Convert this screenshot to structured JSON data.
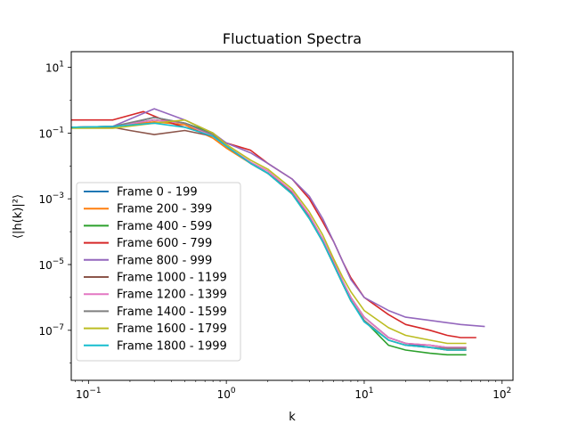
{
  "chart_data": {
    "type": "line",
    "title": "Fluctuation Spectra",
    "xlabel": "k",
    "ylabel": "⟨|h(k)|²⟩",
    "xscale": "log",
    "yscale": "log",
    "xlim": [
      0.075,
      120
    ],
    "ylim": [
      3e-09,
      30
    ],
    "x_ticks": [
      {
        "base": "10",
        "exp": "−1",
        "value": 0.1
      },
      {
        "base": "10",
        "exp": "0",
        "value": 1
      },
      {
        "base": "10",
        "exp": "1",
        "value": 10
      },
      {
        "base": "10",
        "exp": "2",
        "value": 100
      }
    ],
    "y_ticks": [
      {
        "base": "10",
        "exp": "−7",
        "value": 1e-07
      },
      {
        "base": "10",
        "exp": "−5",
        "value": 1e-05
      },
      {
        "base": "10",
        "exp": "−3",
        "value": 0.001
      },
      {
        "base": "10",
        "exp": "−1",
        "value": 0.1
      },
      {
        "base": "10",
        "exp": "1",
        "value": 10
      }
    ],
    "legend_position": "lower-left",
    "series": [
      {
        "name": "Frame 0 - 199",
        "color": "#1f77b4",
        "x": [
          0.075,
          0.15,
          0.3,
          0.5,
          0.8,
          1,
          1.5,
          2,
          3,
          4,
          5,
          6,
          7,
          8,
          10,
          15,
          20,
          30,
          40,
          55
        ],
        "y": [
          0.15,
          0.15,
          0.3,
          0.2,
          0.1,
          0.04,
          0.012,
          0.006,
          0.0016,
          0.0003,
          6e-05,
          1.2e-05,
          3e-06,
          1e-06,
          2.5e-07,
          6e-08,
          4e-08,
          3e-08,
          2.5e-08,
          2.5e-08
        ]
      },
      {
        "name": "Frame 200 - 399",
        "color": "#ff7f0e",
        "x": [
          0.075,
          0.15,
          0.3,
          0.5,
          0.8,
          1,
          1.5,
          2,
          3,
          4,
          5,
          6,
          7,
          8,
          10,
          15,
          20,
          30,
          40,
          55
        ],
        "y": [
          0.15,
          0.16,
          0.22,
          0.18,
          0.07,
          0.035,
          0.012,
          0.006,
          0.0015,
          0.00028,
          5e-05,
          1e-05,
          2.5e-06,
          8e-07,
          2e-07,
          5e-08,
          3.5e-08,
          3e-08,
          2.5e-08,
          2.5e-08
        ]
      },
      {
        "name": "Frame 400 - 599",
        "color": "#2ca02c",
        "x": [
          0.075,
          0.15,
          0.3,
          0.5,
          0.8,
          1,
          1.5,
          2,
          3,
          4,
          5,
          6,
          7,
          8,
          10,
          15,
          20,
          30,
          40,
          55
        ],
        "y": [
          0.15,
          0.16,
          0.25,
          0.2,
          0.1,
          0.04,
          0.012,
          0.006,
          0.0014,
          0.00025,
          5e-05,
          1e-05,
          2.5e-06,
          8e-07,
          2e-07,
          3.5e-08,
          2.5e-08,
          2e-08,
          1.8e-08,
          1.8e-08
        ]
      },
      {
        "name": "Frame 600 - 799",
        "color": "#d62728",
        "x": [
          0.075,
          0.15,
          0.25,
          0.4,
          0.6,
          0.8,
          1,
          1.5,
          2,
          3,
          4,
          5,
          6,
          7,
          8,
          10,
          15,
          20,
          30,
          40,
          50,
          65
        ],
        "y": [
          0.25,
          0.25,
          0.45,
          0.2,
          0.12,
          0.08,
          0.05,
          0.03,
          0.012,
          0.004,
          0.001,
          0.0002,
          5e-05,
          1.2e-05,
          4e-06,
          1e-06,
          3e-07,
          1.5e-07,
          1e-07,
          7e-08,
          6e-08,
          6e-08
        ]
      },
      {
        "name": "Frame 800 - 999",
        "color": "#9467bd",
        "x": [
          0.075,
          0.15,
          0.3,
          0.5,
          0.8,
          1,
          1.5,
          2,
          3,
          4,
          5,
          6,
          7,
          8,
          10,
          15,
          20,
          30,
          40,
          50,
          75
        ],
        "y": [
          0.15,
          0.16,
          0.55,
          0.25,
          0.1,
          0.05,
          0.025,
          0.012,
          0.004,
          0.0012,
          0.00025,
          5e-05,
          1.2e-05,
          3.5e-06,
          1e-06,
          4e-07,
          2.5e-07,
          2e-07,
          1.7e-07,
          1.5e-07,
          1.3e-07
        ]
      },
      {
        "name": "Frame 1000 - 1199",
        "color": "#8c564b",
        "x": [
          0.075,
          0.15,
          0.2,
          0.3,
          0.5,
          0.8,
          1,
          1.5,
          2,
          3,
          4,
          5,
          6,
          7,
          8,
          10,
          15,
          20,
          30,
          40,
          55
        ],
        "y": [
          0.15,
          0.15,
          0.12,
          0.09,
          0.12,
          0.08,
          0.04,
          0.012,
          0.006,
          0.0015,
          0.0003,
          5e-05,
          1.2e-05,
          3e-06,
          1e-06,
          2.5e-07,
          6e-08,
          4e-08,
          3.5e-08,
          3e-08,
          3e-08
        ]
      },
      {
        "name": "Frame 1200 - 1399",
        "color": "#e377c2",
        "x": [
          0.075,
          0.15,
          0.3,
          0.5,
          0.8,
          1,
          1.5,
          2,
          3,
          4,
          5,
          6,
          7,
          8,
          10,
          15,
          20,
          30,
          40,
          55
        ],
        "y": [
          0.15,
          0.16,
          0.25,
          0.2,
          0.08,
          0.04,
          0.013,
          0.007,
          0.0017,
          0.00032,
          6e-05,
          1.3e-05,
          3e-06,
          1e-06,
          2.5e-07,
          6e-08,
          4e-08,
          3.5e-08,
          3e-08,
          3e-08
        ]
      },
      {
        "name": "Frame 1400 - 1599",
        "color": "#7f7f7f",
        "x": [
          0.075,
          0.15,
          0.3,
          0.5,
          0.8,
          1,
          1.5,
          2,
          3,
          4,
          5,
          6,
          7,
          8,
          10,
          15,
          20,
          30,
          40,
          55
        ],
        "y": [
          0.15,
          0.16,
          0.3,
          0.2,
          0.09,
          0.04,
          0.012,
          0.006,
          0.0014,
          0.00026,
          5e-05,
          1e-05,
          2.5e-06,
          8e-07,
          2e-07,
          5e-08,
          3.5e-08,
          3e-08,
          2.8e-08,
          2.8e-08
        ]
      },
      {
        "name": "Frame 1600 - 1799",
        "color": "#bcbd22",
        "x": [
          0.075,
          0.15,
          0.3,
          0.5,
          0.8,
          1,
          1.5,
          2,
          3,
          4,
          5,
          6,
          7,
          8,
          10,
          15,
          20,
          30,
          40,
          55
        ],
        "y": [
          0.14,
          0.14,
          0.2,
          0.25,
          0.1,
          0.045,
          0.015,
          0.008,
          0.002,
          0.0004,
          8e-05,
          1.5e-05,
          4e-06,
          1.5e-06,
          4e-07,
          1.2e-07,
          7e-08,
          5e-08,
          4e-08,
          4e-08
        ]
      },
      {
        "name": "Frame 1800 - 1999",
        "color": "#17becf",
        "x": [
          0.075,
          0.15,
          0.3,
          0.5,
          0.8,
          1,
          1.5,
          2,
          3,
          4,
          5,
          6,
          7,
          8,
          10,
          15,
          20,
          30,
          40,
          55
        ],
        "y": [
          0.15,
          0.16,
          0.2,
          0.15,
          0.08,
          0.04,
          0.012,
          0.006,
          0.0014,
          0.00025,
          5e-05,
          1e-05,
          2.5e-06,
          8e-07,
          1.8e-07,
          5e-08,
          3.5e-08,
          3e-08,
          2.5e-08,
          2.5e-08
        ]
      }
    ]
  }
}
